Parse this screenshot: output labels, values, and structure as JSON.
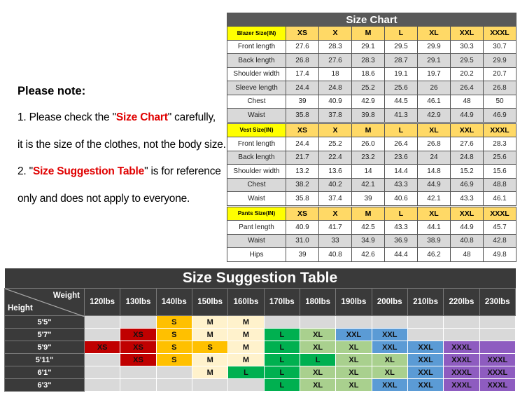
{
  "notes": {
    "title": "Please note:",
    "line1_a": "1. Please check the \"",
    "line1_hl": "Size Chart",
    "line1_b": "\" carefully,",
    "line2": "it is the size of the clothes, not the body size.",
    "line3_a": "2. \"",
    "line3_hl": "Size Suggestion Table",
    "line3_b": "\" is for reference",
    "line4": "only and does not apply to everyone."
  },
  "size_chart": {
    "title": "Size Chart",
    "sizes": [
      "XS",
      "X",
      "M",
      "L",
      "XL",
      "XXL",
      "XXXL"
    ],
    "sections": [
      {
        "label": "Blazer Size(IN)",
        "rows": [
          {
            "name": "Front length",
            "values": [
              "27.6",
              "28.3",
              "29.1",
              "29.5",
              "29.9",
              "30.3",
              "30.7"
            ]
          },
          {
            "name": "Back length",
            "values": [
              "26.8",
              "27.6",
              "28.3",
              "28.7",
              "29.1",
              "29.5",
              "29.9"
            ]
          },
          {
            "name": "Shoulder width",
            "values": [
              "17.4",
              "18",
              "18.6",
              "19.1",
              "19.7",
              "20.2",
              "20.7"
            ]
          },
          {
            "name": "Sleeve length",
            "values": [
              "24.4",
              "24.8",
              "25.2",
              "25.6",
              "26",
              "26.4",
              "26.8"
            ]
          },
          {
            "name": "Chest",
            "values": [
              "39",
              "40.9",
              "42.9",
              "44.5",
              "46.1",
              "48",
              "50"
            ]
          },
          {
            "name": "Waist",
            "values": [
              "35.8",
              "37.8",
              "39.8",
              "41.3",
              "42.9",
              "44.9",
              "46.9"
            ]
          }
        ]
      },
      {
        "label": "Vest Size(IN)",
        "rows": [
          {
            "name": "Front length",
            "values": [
              "24.4",
              "25.2",
              "26.0",
              "26.4",
              "26.8",
              "27.6",
              "28.3"
            ]
          },
          {
            "name": "Back length",
            "values": [
              "21.7",
              "22.4",
              "23.2",
              "23.6",
              "24",
              "24.8",
              "25.6"
            ]
          },
          {
            "name": "Shoulder width",
            "values": [
              "13.2",
              "13.6",
              "14",
              "14.4",
              "14.8",
              "15.2",
              "15.6"
            ]
          },
          {
            "name": "Chest",
            "values": [
              "38.2",
              "40.2",
              "42.1",
              "43.3",
              "44.9",
              "46.9",
              "48.8"
            ]
          },
          {
            "name": "Waist",
            "values": [
              "35.8",
              "37.4",
              "39",
              "40.6",
              "42.1",
              "43.3",
              "46.1"
            ]
          }
        ]
      },
      {
        "label": "Pants Size(IN)",
        "rows": [
          {
            "name": "Pant length",
            "values": [
              "40.9",
              "41.7",
              "42.5",
              "43.3",
              "44.1",
              "44.9",
              "45.7"
            ]
          },
          {
            "name": "Waist",
            "values": [
              "31.0",
              "33",
              "34.9",
              "36.9",
              "38.9",
              "40.8",
              "42.8"
            ]
          },
          {
            "name": "Hips",
            "values": [
              "39",
              "40.8",
              "42.6",
              "44.4",
              "46.2",
              "48",
              "49.8"
            ]
          }
        ]
      }
    ]
  },
  "suggestion_table": {
    "title": "Size Suggestion Table",
    "weight_label": "Weight",
    "height_label": "Height",
    "weights": [
      "120lbs",
      "130lbs",
      "140lbs",
      "150lbs",
      "160lbs",
      "170lbs",
      "180lbs",
      "190lbs",
      "200lbs",
      "210lbs",
      "220lbs",
      "230lbs"
    ],
    "colors": {
      "gray": "#d9d9d9",
      "XS": "#c00000",
      "S": "#ffc000",
      "M": "#fff2cc",
      "L": "#00b050",
      "XL": "#a9d08e",
      "XXL": "#5b9bd5",
      "XXXL": "#8e5cc0",
      "S_dark": "#ffc000"
    },
    "rows": [
      {
        "height": "5'5\"",
        "cells": [
          "",
          "",
          "S",
          "M",
          "M",
          "",
          "",
          "",
          "",
          "",
          "",
          ""
        ]
      },
      {
        "height": "5'7\"",
        "cells": [
          "",
          "XS",
          "S",
          "M",
          "M",
          "L",
          "XL",
          "XXL",
          "XXL",
          "",
          "",
          ""
        ]
      },
      {
        "height": "5'9\"",
        "cells": [
          "XS",
          "XS",
          "S",
          "S",
          "M",
          "L",
          "XL",
          "XL",
          "XXL",
          "XXL",
          "XXXL",
          "XXXL-empty"
        ]
      },
      {
        "height": "5'11\"",
        "cells": [
          "",
          "XS",
          "S",
          "M",
          "M",
          "L",
          "L",
          "XL",
          "XL",
          "XXL",
          "XXXL",
          "XXXL"
        ]
      },
      {
        "height": "6'1\"",
        "cells": [
          "",
          "",
          "",
          "M",
          "L",
          "L",
          "XL",
          "XL",
          "XL",
          "XXL",
          "XXXL",
          "XXXL"
        ]
      },
      {
        "height": "6'3\"",
        "cells": [
          "",
          "",
          "",
          "",
          "",
          "L",
          "XL",
          "XL",
          "XXL",
          "XXL",
          "XXXL",
          "XXXL"
        ]
      }
    ]
  }
}
